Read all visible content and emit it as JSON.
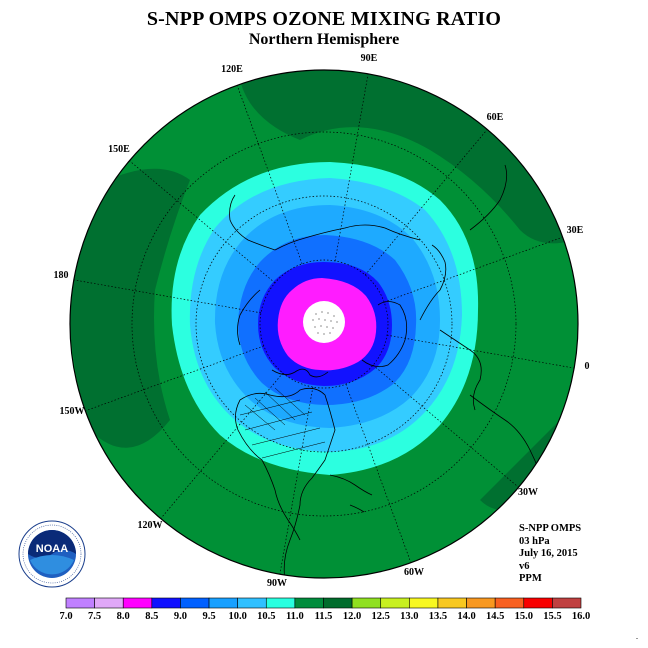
{
  "title": "S-NPP OMPS OZONE MIXING RATIO",
  "subtitle": "Northern Hemisphere",
  "longitude_labels": [
    "90E",
    "60E",
    "30E",
    "0",
    "30W",
    "60W",
    "90W",
    "120W",
    "150W",
    "180",
    "150E",
    "120E"
  ],
  "info": {
    "instrument": "S-NPP OMPS",
    "pressure": "03 hPa",
    "date": "July 16, 2015",
    "version": "v6",
    "units": "PPM"
  },
  "logo": {
    "text": "NOAA"
  },
  "colorbar": {
    "ticks": [
      "7.0",
      "7.5",
      "8.0",
      "8.5",
      "9.0",
      "9.5",
      "10.0",
      "10.5",
      "11.0",
      "11.5",
      "12.0",
      "12.5",
      "13.0",
      "13.5",
      "14.0",
      "14.5",
      "15.0",
      "15.5",
      "16.0"
    ],
    "colors": [
      "#c080ff",
      "#e0a8f8",
      "#ff00ff",
      "#1010ff",
      "#0060ff",
      "#18a0ff",
      "#30c0ff",
      "#28ffe0",
      "#008c3c",
      "#006c2c",
      "#90e020",
      "#c8f020",
      "#f8f820",
      "#f8c820",
      "#f89820",
      "#f86020",
      "#f80000",
      "#c04040",
      "#a06040"
    ]
  },
  "map_colors": {
    "outer_green": "#009036",
    "dark_green": "#007030",
    "aqua": "#2cffe0",
    "light_sky": "#34ccff",
    "sky": "#1eaaff",
    "royal": "#1070ff",
    "blue": "#1212ff",
    "magenta": "#ff1cff",
    "center": "#ffffff"
  }
}
